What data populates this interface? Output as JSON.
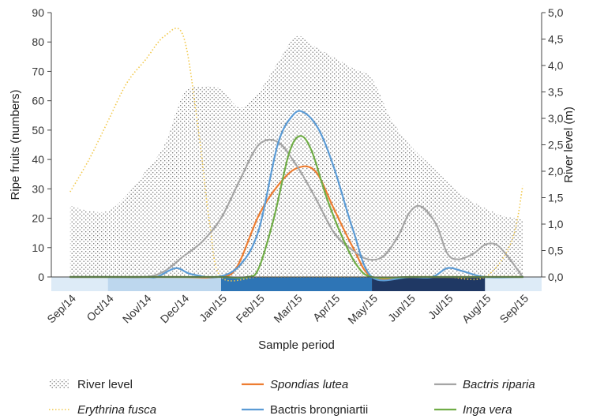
{
  "chart_data": {
    "type": "line",
    "xlabel": "Sample period",
    "ylabel": "Ripe fruits (numbers)",
    "y2label": "River level (m)",
    "ylim": [
      0,
      90
    ],
    "y2lim": [
      0,
      5
    ],
    "yticks": [
      "0",
      "10",
      "20",
      "30",
      "40",
      "50",
      "60",
      "70",
      "80",
      "90"
    ],
    "y2ticks": [
      "0,0",
      "0,5",
      "1,0",
      "1,5",
      "2,0",
      "2,5",
      "3,0",
      "3,5",
      "4,0",
      "4,5",
      "5,0"
    ],
    "categories": [
      "Sep/14",
      "Oct/14",
      "Nov/14",
      "Dec/14",
      "Jan/15",
      "Feb/15",
      "Mar/15",
      "Apr/15",
      "May/15",
      "Jun/15",
      "Jul/15",
      "Aug/15",
      "Sep/15"
    ],
    "river_level": {
      "name": "River level",
      "x": [
        0,
        0.5,
        1,
        1.5,
        2,
        2.5,
        3,
        3.5,
        4,
        4.5,
        5,
        5.5,
        6,
        6.5,
        7,
        7.5,
        8,
        8.5,
        9,
        9.5,
        10,
        10.5,
        11,
        11.5,
        12
      ],
      "values": [
        1.35,
        1.25,
        1.25,
        1.55,
        2.0,
        2.5,
        3.45,
        3.6,
        3.55,
        3.2,
        3.5,
        4.05,
        4.55,
        4.35,
        4.15,
        3.95,
        3.75,
        3.0,
        2.5,
        2.15,
        1.8,
        1.5,
        1.3,
        1.15,
        1.1
      ]
    },
    "series": [
      {
        "name": "Erythrina fusca",
        "color": "#F2C94C",
        "style": "dotted",
        "x": [
          0,
          0.5,
          1,
          1.5,
          2,
          2.5,
          3,
          3.4,
          3.7,
          4,
          5,
          6,
          7,
          8,
          9,
          10,
          11,
          11.7,
          12
        ],
        "values": [
          29,
          40,
          53,
          66,
          74,
          82,
          82,
          50,
          18,
          0,
          0,
          0,
          0,
          0,
          0,
          0,
          0,
          12,
          31
        ]
      },
      {
        "name": "Spondias lutea",
        "color": "#ED7D31",
        "style": "solid",
        "x": [
          0,
          1,
          2,
          3,
          3.9,
          4.4,
          5,
          5.5,
          6,
          6.5,
          7,
          7.5,
          8,
          9,
          10,
          11,
          12
        ],
        "values": [
          0,
          0,
          0,
          0,
          0,
          3,
          21,
          31,
          37,
          36,
          23,
          10,
          0,
          0,
          0,
          0,
          0
        ]
      },
      {
        "name": "Bactris riparia",
        "color": "#A5A5A5",
        "style": "solid",
        "x": [
          0,
          1,
          2,
          2.5,
          3,
          3.5,
          4,
          4.5,
          5,
          5.5,
          6,
          6.5,
          7,
          7.5,
          7.9,
          8.3,
          8.7,
          9,
          9.3,
          9.7,
          10,
          10.3,
          10.7,
          11,
          11.3,
          11.6,
          12
        ],
        "values": [
          0,
          0,
          0,
          2,
          7,
          12,
          20,
          33,
          45,
          46,
          38,
          27,
          15,
          9,
          6,
          7,
          14,
          22,
          24,
          18,
          8,
          6,
          8,
          11,
          11,
          7,
          0
        ]
      },
      {
        "name": "Bactris brongniartii",
        "color": "#5B9BD5",
        "style": "solid",
        "x": [
          0,
          1,
          2,
          2.3,
          2.8,
          3.2,
          3.9,
          4.5,
          5,
          5.5,
          5.9,
          6.2,
          6.6,
          7,
          7.5,
          8,
          9,
          9.6,
          10,
          10.4,
          11,
          12
        ],
        "values": [
          0,
          0,
          0,
          0,
          3,
          1,
          0,
          4,
          16,
          45,
          55,
          56,
          50,
          37,
          16,
          0,
          0,
          0,
          3,
          2,
          0,
          0
        ]
      },
      {
        "name": "Inga vera",
        "color": "#70AD47",
        "style": "solid",
        "x": [
          0,
          1,
          2,
          3,
          4,
          4.7,
          5,
          5.4,
          5.8,
          6.1,
          6.4,
          6.8,
          7.2,
          7.6,
          8,
          9,
          10,
          11,
          12
        ],
        "values": [
          0,
          0,
          0,
          0,
          0,
          0,
          3,
          20,
          42,
          48,
          43,
          27,
          14,
          4,
          0,
          0,
          0,
          0,
          0
        ]
      }
    ],
    "season_bar": [
      {
        "x0": -0.5,
        "x1": 1.0,
        "color": "#DDEBF7"
      },
      {
        "x0": 1.0,
        "x1": 4.0,
        "color": "#BDD7EE"
      },
      {
        "x0": 4.0,
        "x1": 8.0,
        "color": "#2E75B6"
      },
      {
        "x0": 8.0,
        "x1": 11.0,
        "color": "#1F3864"
      },
      {
        "x0": 11.0,
        "x1": 12.5,
        "color": "#DDEBF7"
      }
    ],
    "legend": [
      {
        "label": "River level",
        "key": "river",
        "italic": false
      },
      {
        "label": "Spondias lutea",
        "key": "s1",
        "italic": true
      },
      {
        "label": "Bactris riparia",
        "key": "s2",
        "italic": true
      },
      {
        "label": "Erythrina fusca",
        "key": "s0",
        "italic": true
      },
      {
        "label": "Bactris brongniartii",
        "key": "s3",
        "italic": false
      },
      {
        "label": "Inga vera",
        "key": "s4",
        "italic": true
      }
    ],
    "grid": false,
    "legend_position": "bottom"
  }
}
